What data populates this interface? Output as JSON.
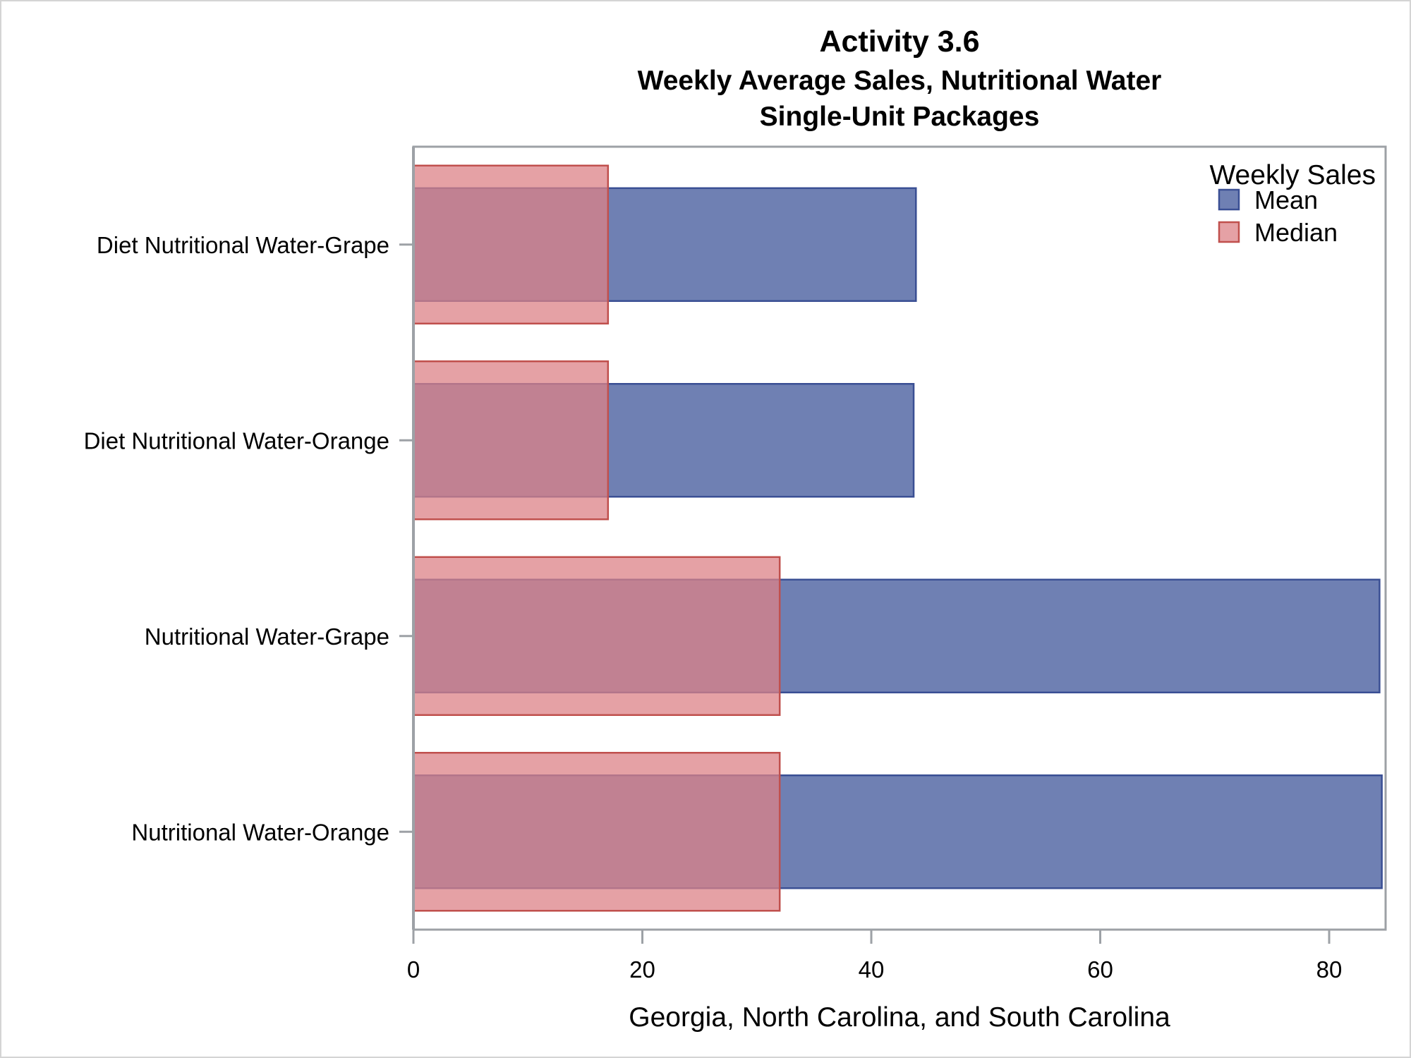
{
  "chart_data": {
    "type": "bar",
    "orientation": "horizontal",
    "title": "Activity 3.6",
    "subtitle_lines": [
      "Weekly Average Sales, Nutritional Water",
      "Single-Unit Packages"
    ],
    "xlabel": "Georgia, North Carolina, and South Carolina",
    "ylabel": "",
    "categories": [
      "Diet Nutritional Water-Grape",
      "Diet Nutritional Water-Orange",
      "Nutritional Water-Grape",
      "Nutritional Water-Orange"
    ],
    "series": [
      {
        "name": "Mean",
        "values": [
          43.9,
          43.7,
          84.4,
          84.6
        ],
        "fill": "#5b6ea8",
        "stroke": "#3a4f94"
      },
      {
        "name": "Median",
        "values": [
          17,
          17,
          32,
          32
        ],
        "fill": "#dc8287",
        "stroke": "#c0504d"
      }
    ],
    "xlim": [
      0,
      84.9
    ],
    "xticks": [
      0,
      20,
      40,
      60,
      80
    ],
    "grid": false,
    "legend": {
      "title": "Weekly Sales",
      "position": "top-right",
      "inside": true
    }
  }
}
